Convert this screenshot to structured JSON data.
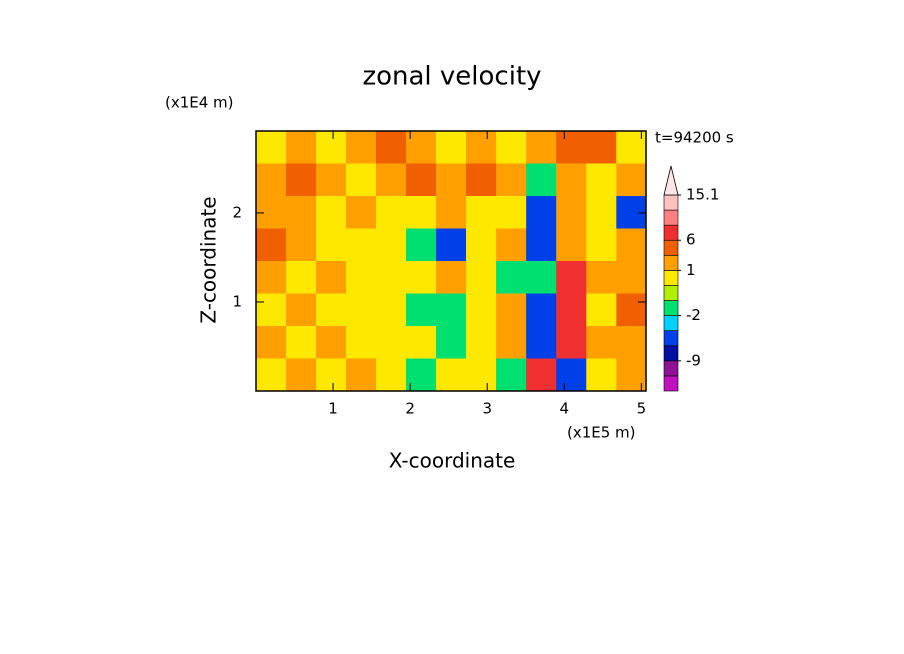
{
  "chart_data": {
    "type": "contour",
    "title": "zonal velocity",
    "xlabel": "X-coordinate",
    "ylabel": "Z-coordinate",
    "xunit": "(x1E5 m)",
    "yunit": "(x1E4 m)",
    "annotation": "t=94200 s",
    "xlim": [
      0,
      5.06
    ],
    "ylim": [
      0,
      2.92
    ],
    "xticks": [
      1,
      2,
      3,
      4,
      5
    ],
    "yticks": [
      1,
      2
    ],
    "x": [
      0.195,
      0.584,
      0.973,
      1.362,
      1.751,
      2.14,
      2.53,
      2.92,
      3.31,
      3.7,
      4.09,
      4.48,
      4.87
    ],
    "y": [
      2.74,
      2.37,
      2.01,
      1.64,
      1.28,
      0.91,
      0.55,
      0.18
    ],
    "z": [
      [
        0.5,
        2,
        0.5,
        2,
        4,
        2,
        0.5,
        2,
        0.5,
        2,
        4,
        4,
        0.5
      ],
      [
        2,
        4,
        2,
        0.5,
        2,
        4,
        2,
        4,
        2,
        -1.5,
        2,
        0.5,
        2
      ],
      [
        2,
        2,
        0.5,
        2,
        0.5,
        0.5,
        2,
        0.5,
        0.5,
        -5,
        2,
        0.5,
        -5
      ],
      [
        4,
        2,
        0.5,
        0.5,
        0.5,
        -1.5,
        -5,
        0.5,
        2,
        -5,
        2,
        0.5,
        2
      ],
      [
        2,
        0.5,
        2,
        0.5,
        0.5,
        0.5,
        2,
        0.5,
        -1.5,
        -1.5,
        7,
        2,
        2
      ],
      [
        0.5,
        2,
        0.5,
        0.5,
        0.5,
        -1.5,
        -1.5,
        0.5,
        2,
        -5,
        7,
        0.5,
        4
      ],
      [
        2,
        0.5,
        2,
        0.5,
        0.5,
        0.5,
        -1.5,
        0.5,
        2,
        -5,
        7,
        2,
        2
      ],
      [
        0.5,
        2,
        0.5,
        2,
        0.5,
        -1.5,
        0.5,
        0.5,
        -1.5,
        7,
        -5,
        0.5,
        2
      ]
    ],
    "levels": [
      -15,
      -12,
      -9,
      -6,
      -4,
      -2,
      -1,
      0,
      1,
      3,
      6,
      9,
      12,
      15.1
    ],
    "colors": [
      "#e818b8",
      "#c010c0",
      "#901098",
      "#0010a0",
      "#0040e8",
      "#00d0ff",
      "#00e070",
      "#b0f000",
      "#ffe800",
      "#ffa000",
      "#f06000",
      "#f03030",
      "#ff8080",
      "#ffc0c0",
      "#ffe6e6"
    ],
    "colorbar_ticks": [
      -9,
      -2,
      1,
      6,
      15.1
    ]
  }
}
